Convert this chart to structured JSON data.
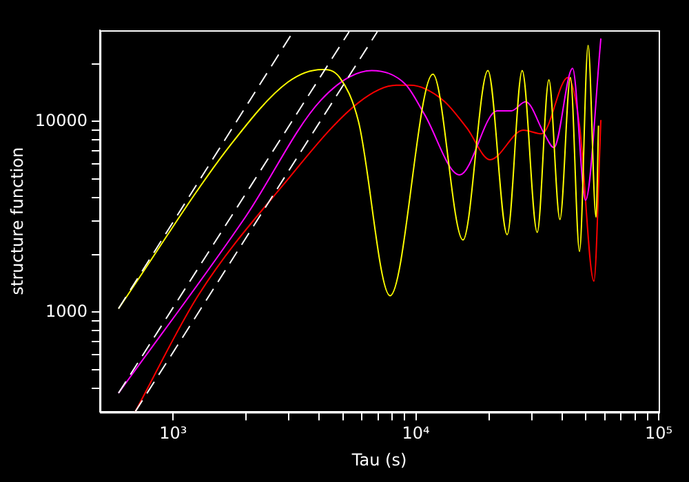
{
  "chart_data": {
    "type": "line",
    "xlabel": "Tau (s)",
    "ylabel": "structure function",
    "log": "xy",
    "grid": false,
    "legend": false,
    "marker": "none",
    "line_style": "solid",
    "xlim": [
      500,
      100000
    ],
    "ylim": [
      300,
      30000
    ],
    "xticks": [
      {
        "value": 1000,
        "label": "10³"
      },
      {
        "value": 2000,
        "label": null
      },
      {
        "value": 3000,
        "label": null
      },
      {
        "value": 4000,
        "label": null
      },
      {
        "value": 5000,
        "label": null
      },
      {
        "value": 6000,
        "label": null
      },
      {
        "value": 7000,
        "label": null
      },
      {
        "value": 8000,
        "label": null
      },
      {
        "value": 9000,
        "label": null
      },
      {
        "value": 10000,
        "label": "10⁴"
      },
      {
        "value": 20000,
        "label": null
      },
      {
        "value": 30000,
        "label": null
      },
      {
        "value": 40000,
        "label": null
      },
      {
        "value": 50000,
        "label": null
      },
      {
        "value": 60000,
        "label": null
      },
      {
        "value": 70000,
        "label": null
      },
      {
        "value": 80000,
        "label": null
      },
      {
        "value": 90000,
        "label": null
      },
      {
        "value": 100000,
        "label": "10⁵"
      }
    ],
    "yticks": [
      {
        "value": 400,
        "label": null
      },
      {
        "value": 500,
        "label": null
      },
      {
        "value": 600,
        "label": null
      },
      {
        "value": 700,
        "label": null
      },
      {
        "value": 800,
        "label": null
      },
      {
        "value": 900,
        "label": null
      },
      1000,
      {
        "value": 2000,
        "label": null
      },
      {
        "value": 3000,
        "label": null
      },
      {
        "value": 4000,
        "label": null
      },
      {
        "value": 5000,
        "label": null
      },
      {
        "value": 6000,
        "label": null
      },
      {
        "value": 7000,
        "label": null
      },
      {
        "value": 8000,
        "label": null
      },
      {
        "value": 9000,
        "label": null
      },
      10000,
      {
        "value": 20000,
        "label": null
      }
    ],
    "series": [
      {
        "color": "#ffffff",
        "line_style": "dashed",
        "x": [
          596,
          3105
        ],
        "values": [
          1045,
          29200
        ]
      },
      {
        "color": "#ffffff",
        "line_style": "dashed",
        "x": [
          596,
          5310
        ],
        "values": [
          377,
          29500
        ]
      },
      {
        "color": "#ffffff",
        "line_style": "dashed",
        "x": [
          697,
          6935
        ],
        "values": [
          300,
          29500
        ]
      },
      {
        "color": "#ffff00",
        "x": [
          596,
          1738,
          2970,
          4110,
          4850,
          5800,
          7830,
          11750,
          15630,
          19800,
          23770,
          27400,
          31600,
          35300,
          39200,
          43300,
          47200,
          51200,
          55200,
          56500
        ],
        "values": [
          1045,
          7620,
          16060,
          18700,
          17000,
          10000,
          1220,
          17650,
          2390,
          18450,
          2550,
          18450,
          2620,
          16500,
          3060,
          17000,
          2080,
          25000,
          3150,
          9500
        ]
      },
      {
        "color": "#ff00ff",
        "x": [
          596,
          1987,
          4060,
          6580,
          9060,
          10840,
          15140,
          21600,
          24700,
          28300,
          33800,
          37000,
          44200,
          50000,
          57800
        ],
        "values": [
          377,
          3160,
          12900,
          18450,
          15630,
          10900,
          5240,
          11340,
          11340,
          12680,
          8610,
          7290,
          18970,
          3860,
          27200
        ]
      },
      {
        "color": "#ff0000",
        "x": [
          697,
          1273,
          2840,
          5800,
          8300,
          9480,
          12950,
          16200,
          20200,
          27700,
          33000,
          42300,
          47200,
          54100,
          57800
        ],
        "values": [
          300,
          1233,
          4640,
          12530,
          15460,
          15460,
          12890,
          9250,
          6300,
          8990,
          8610,
          17000,
          9500,
          1455,
          10170
        ]
      }
    ]
  }
}
